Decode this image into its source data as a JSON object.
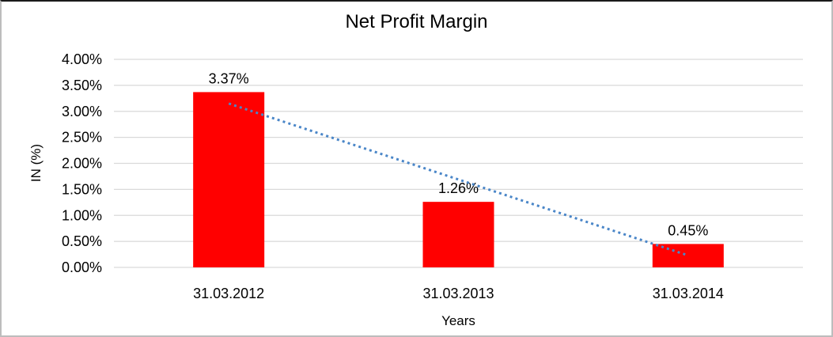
{
  "chart_data": {
    "type": "bar",
    "title": "Net Profit Margin",
    "xlabel": "Years",
    "ylabel": "IN (%)",
    "categories": [
      "31.03.2012",
      "31.03.2013",
      "31.03.2014"
    ],
    "values": [
      3.37,
      1.26,
      0.45
    ],
    "data_labels": [
      "3.37%",
      "1.26%",
      "0.45%"
    ],
    "ylim": [
      0,
      4
    ],
    "ytick_step": 0.5,
    "ytick_labels": [
      "0.00%",
      "0.50%",
      "1.00%",
      "1.50%",
      "2.00%",
      "2.50%",
      "3.00%",
      "3.50%",
      "4.00%"
    ],
    "grid": true,
    "legend": "none",
    "colors": {
      "bar": "#ff0000",
      "trendline": "#4a86c8",
      "gridline": "#d9d9d9",
      "text": "#000000",
      "background": "#ffffff"
    },
    "trendline": {
      "visible": true,
      "kind": "linear",
      "style": "dotted",
      "endpoints_pct": [
        3.15,
        0.23
      ]
    }
  }
}
